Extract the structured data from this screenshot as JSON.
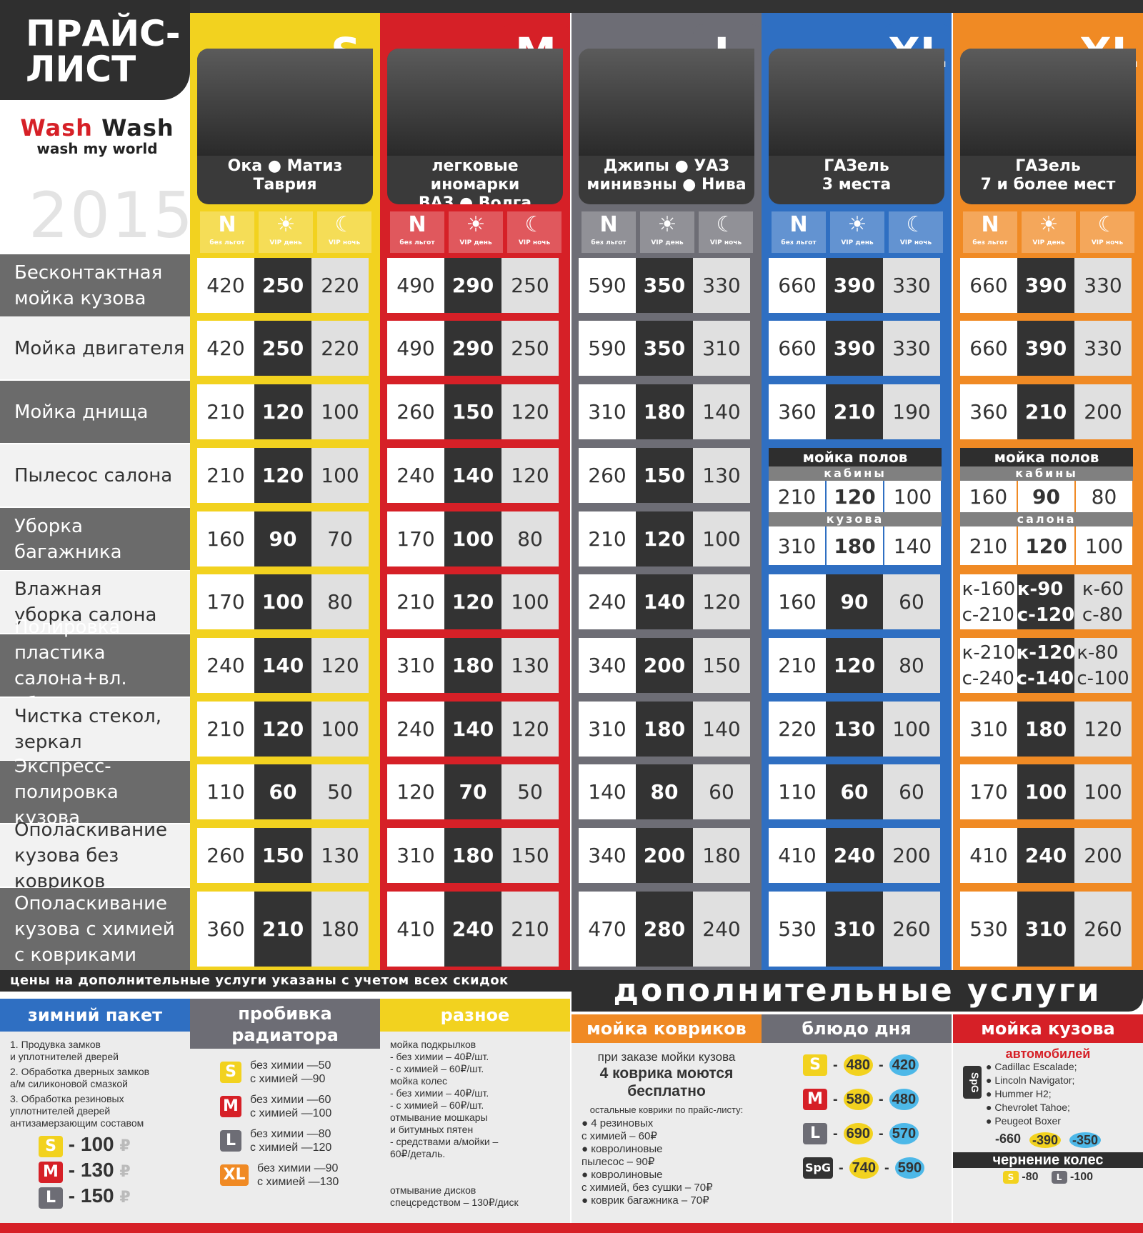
{
  "header": {
    "title_line1": "ПРАЙС-",
    "title_line2": "ЛИСТ",
    "brand_red": "Wash",
    "brand_dark": "Wash",
    "slogan": "wash my world",
    "year": "2015"
  },
  "icon_labels": {
    "n_label": "без льгот",
    "day_label": "VIP день",
    "night_label": "VIP ночь",
    "n_glyph": "N"
  },
  "rows": [
    {
      "label": "Бесконтактная\nмойка кузова"
    },
    {
      "label": "Мойка двигателя"
    },
    {
      "label": "Мойка днища"
    },
    {
      "label": "Пылесос салона"
    },
    {
      "label": "Уборка багажника"
    },
    {
      "label": "Влажная\nуборка салона"
    },
    {
      "label": "Полировка пластика\nсалона+вл. уборка"
    },
    {
      "label": "Чистка стекол, зеркал"
    },
    {
      "label": "Экспресс-\nполировка кузова"
    },
    {
      "label": "Ополаскивание\nкузова без ковриков"
    },
    {
      "label": "Ополаскивание\nкузова с химией\nс ковриками"
    }
  ],
  "columns": [
    {
      "size": "S",
      "color": "#f2d21f",
      "cars": "Ока ● Матиз\nТаврия",
      "prices": [
        [
          "420",
          "250",
          "220"
        ],
        [
          "420",
          "250",
          "220"
        ],
        [
          "210",
          "120",
          "100"
        ],
        [
          "210",
          "120",
          "100"
        ],
        [
          "160",
          "90",
          "70"
        ],
        [
          "170",
          "100",
          "80"
        ],
        [
          "240",
          "140",
          "120"
        ],
        [
          "210",
          "120",
          "100"
        ],
        [
          "110",
          "60",
          "50"
        ],
        [
          "260",
          "150",
          "130"
        ],
        [
          "360",
          "210",
          "180"
        ]
      ]
    },
    {
      "size": "M",
      "color": "#d62027",
      "cars": "легковые иномарки\nВАЗ ● Волга",
      "prices": [
        [
          "490",
          "290",
          "250"
        ],
        [
          "490",
          "290",
          "250"
        ],
        [
          "260",
          "150",
          "120"
        ],
        [
          "240",
          "140",
          "120"
        ],
        [
          "170",
          "100",
          "80"
        ],
        [
          "210",
          "120",
          "100"
        ],
        [
          "310",
          "180",
          "130"
        ],
        [
          "240",
          "140",
          "120"
        ],
        [
          "120",
          "70",
          "50"
        ],
        [
          "310",
          "180",
          "150"
        ],
        [
          "410",
          "240",
          "210"
        ]
      ]
    },
    {
      "size": "L",
      "color": "#6d6d75",
      "cars": "Джипы ● УАЗ\nминивэны ● Нива",
      "prices": [
        [
          "590",
          "350",
          "330"
        ],
        [
          "590",
          "350",
          "310"
        ],
        [
          "310",
          "180",
          "140"
        ],
        [
          "260",
          "150",
          "130"
        ],
        [
          "210",
          "120",
          "100"
        ],
        [
          "240",
          "140",
          "120"
        ],
        [
          "340",
          "200",
          "150"
        ],
        [
          "310",
          "180",
          "140"
        ],
        [
          "140",
          "80",
          "60"
        ],
        [
          "340",
          "200",
          "180"
        ],
        [
          "470",
          "280",
          "240"
        ]
      ]
    },
    {
      "size": "XL",
      "color": "#2f6fc2",
      "cars": "ГАЗель\n3 места",
      "prices": [
        [
          "660",
          "390",
          "330"
        ],
        [
          "660",
          "390",
          "330"
        ],
        [
          "360",
          "210",
          "190"
        ],
        null,
        null,
        [
          "160",
          "90",
          "60"
        ],
        [
          "210",
          "120",
          "80"
        ],
        [
          "220",
          "130",
          "100"
        ],
        [
          "110",
          "60",
          "60"
        ],
        [
          "410",
          "240",
          "200"
        ],
        [
          "530",
          "310",
          "260"
        ]
      ],
      "special": {
        "head": "мойка полов",
        "sub1": "кабины",
        "row1": [
          "210",
          "120",
          "100"
        ],
        "sub2": "кузова",
        "row2": [
          "310",
          "180",
          "140"
        ]
      }
    },
    {
      "size": "XL",
      "color": "#f08a24",
      "cars": "ГАЗель\n7 и более мест",
      "prices": [
        [
          "660",
          "390",
          "330"
        ],
        [
          "660",
          "390",
          "330"
        ],
        [
          "360",
          "210",
          "200"
        ],
        null,
        null,
        [
          "к-160\nс-210",
          "к-90\nс-120",
          "к-60\nс-80"
        ],
        [
          "к-210\nс-240",
          "к-120\nс-140",
          "к-80\nс-100"
        ],
        [
          "310",
          "180",
          "120"
        ],
        [
          "170",
          "100",
          "100"
        ],
        [
          "410",
          "240",
          "200"
        ],
        [
          "530",
          "310",
          "260"
        ]
      ],
      "special": {
        "head": "мойка полов",
        "sub1": "кабины",
        "row1": [
          "160",
          "90",
          "80"
        ],
        "sub2": "салона",
        "row2": [
          "210",
          "120",
          "100"
        ]
      }
    }
  ],
  "notes": {
    "discount_bar": "цены на дополнительные услуги указаны с учетом всех скидок",
    "dop_title": "дополнительные   услуги"
  },
  "extras": {
    "winter": {
      "title": "зимний пакет",
      "items": [
        "1. Продувка замков\n   и уплотнителей дверей",
        "2. Обработка дверных замков\n   а/м силиконовой смазкой",
        "3. Обработка резиновых\n   уплотнителей дверей\n   антизамерзающим составом"
      ],
      "prices": [
        {
          "s": "S",
          "v": "- 100",
          "c": "#f2d21f"
        },
        {
          "s": "M",
          "v": "- 130",
          "c": "#d62027"
        },
        {
          "s": "L",
          "v": "- 150",
          "c": "#6d6d75"
        }
      ],
      "currency": "₽"
    },
    "radiator": {
      "title": "пробивка\nрадиатора",
      "rows": [
        {
          "s": "S",
          "c": "#f2d21f",
          "t": "без химии —50\nс химией   —90"
        },
        {
          "s": "M",
          "c": "#d62027",
          "t": "без химии —60\nс химией   —100"
        },
        {
          "s": "L",
          "c": "#6d6d75",
          "t": "без химии —80\nс химией   —120"
        },
        {
          "s": "XL",
          "c": "#f08a24",
          "t": "без химии —90\nс химией   —130"
        }
      ]
    },
    "misc": {
      "title": "разное",
      "text": "мойка подкрылков\n  - без химии – 40₽/шт.\n  - с химией – 60₽/шт.\nмойка колес\n  - без химии – 40₽/шт.\n  - с химией – 60₽/шт.\nотмывание мошкары\nи битумных пятен\n  - средствами а/мойки –\n    60₽/деталь.\n\n\nотмывание дисков\n   спецсредством – 130₽/диск"
    },
    "mats": {
      "title": "мойка ковриков",
      "l1": "при заказе мойки кузова",
      "l2": "4 коврика моются\nбесплатно",
      "l3": "остальные коврики по прайс-листу:",
      "list": "● 4 резиновых\n   с химией – 60₽\n● ковролиновые\n   пылесос – 90₽\n● ковролиновые\n   с химией, без сушки – 70₽\n● коврик багажника – 70₽"
    },
    "dish": {
      "title": "блюдо дня",
      "rows": [
        {
          "s": "S",
          "c": "#f2d21f",
          "a": "480",
          "b": "420"
        },
        {
          "s": "M",
          "c": "#d62027",
          "a": "580",
          "b": "480"
        },
        {
          "s": "L",
          "c": "#6d6d75",
          "a": "690",
          "b": "570"
        },
        {
          "s": "SpG",
          "c": "#333",
          "a": "740",
          "b": "590"
        }
      ]
    },
    "body": {
      "title": "мойка кузова",
      "sub": "автомобилей",
      "list": "● Cadillac Escalade;\n● Lincoln Navigator;\n● Hummer H2;\n● Chevrolet Tahoe;\n● Peugeot Boxer",
      "spg": "SpG",
      "p1": "-660",
      "p2": "-390",
      "p3": "-350",
      "blacken_title": "чернение колес",
      "bs": "-80",
      "bl": "-100",
      "cur": "₽"
    }
  }
}
